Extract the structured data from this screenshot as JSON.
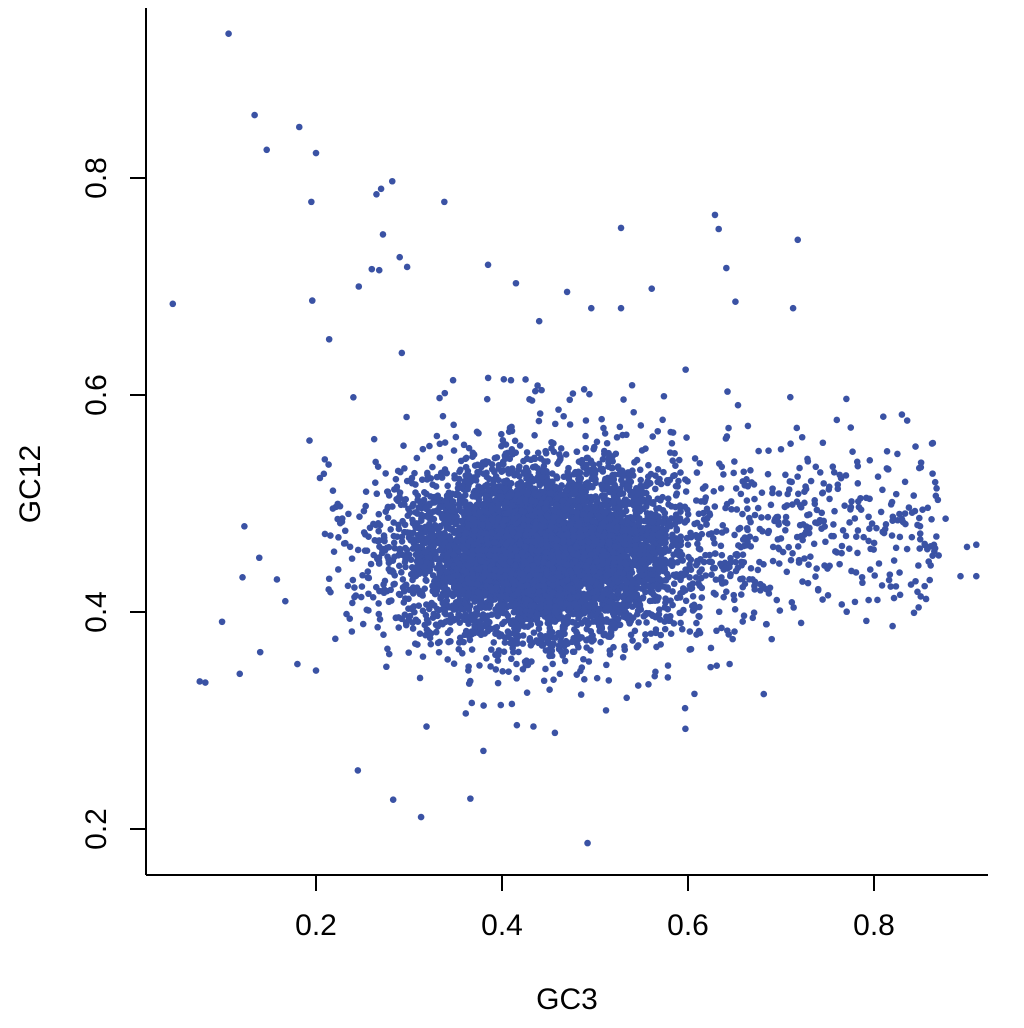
{
  "chart_data": {
    "type": "scatter",
    "title": "",
    "xlabel": "GC3",
    "ylabel": "GC12",
    "xlim": [
      0.02,
      0.93
    ],
    "ylim": [
      0.18,
      0.96
    ],
    "x_ticks": [
      0.2,
      0.4,
      0.6,
      0.8
    ],
    "x_tick_labels": [
      "0.2",
      "0.4",
      "0.6",
      "0.8"
    ],
    "y_ticks": [
      0.2,
      0.4,
      0.6,
      0.8
    ],
    "y_tick_labels": [
      "0.2",
      "0.4",
      "0.6",
      "0.8"
    ],
    "grid": false,
    "legend": "none",
    "point_color": "#3A52A4",
    "series": [
      {
        "points": [
          [
            0.106,
            0.933
          ],
          [
            0.134,
            0.858
          ],
          [
            0.147,
            0.826
          ],
          [
            0.182,
            0.847
          ],
          [
            0.2,
            0.823
          ],
          [
            0.195,
            0.778
          ],
          [
            0.265,
            0.785
          ],
          [
            0.27,
            0.79
          ],
          [
            0.282,
            0.797
          ],
          [
            0.338,
            0.778
          ],
          [
            0.046,
            0.684
          ],
          [
            0.196,
            0.687
          ],
          [
            0.246,
            0.7
          ],
          [
            0.26,
            0.716
          ],
          [
            0.268,
            0.715
          ],
          [
            0.272,
            0.748
          ],
          [
            0.29,
            0.727
          ],
          [
            0.298,
            0.718
          ],
          [
            0.385,
            0.72
          ],
          [
            0.415,
            0.703
          ],
          [
            0.44,
            0.668
          ],
          [
            0.47,
            0.695
          ],
          [
            0.496,
            0.68
          ],
          [
            0.528,
            0.68
          ],
          [
            0.528,
            0.754
          ],
          [
            0.561,
            0.698
          ],
          [
            0.629,
            0.766
          ],
          [
            0.633,
            0.753
          ],
          [
            0.651,
            0.686
          ],
          [
            0.713,
            0.68
          ],
          [
            0.718,
            0.743
          ],
          [
            0.193,
            0.558
          ],
          [
            0.123,
            0.479
          ],
          [
            0.139,
            0.45
          ],
          [
            0.099,
            0.391
          ],
          [
            0.121,
            0.432
          ],
          [
            0.075,
            0.336
          ],
          [
            0.081,
            0.335
          ],
          [
            0.118,
            0.343
          ],
          [
            0.14,
            0.363
          ],
          [
            0.158,
            0.43
          ],
          [
            0.167,
            0.41
          ],
          [
            0.18,
            0.352
          ],
          [
            0.2,
            0.346
          ],
          [
            0.245,
            0.254
          ],
          [
            0.283,
            0.227
          ],
          [
            0.313,
            0.211
          ],
          [
            0.366,
            0.228
          ],
          [
            0.492,
            0.187
          ],
          [
            0.38,
            0.272
          ],
          [
            0.69,
            0.375
          ],
          [
            0.82,
            0.387
          ],
          [
            0.856,
            0.412
          ],
          [
            0.893,
            0.433
          ],
          [
            0.91,
            0.462
          ],
          [
            0.9,
            0.46
          ],
          [
            0.91,
            0.433
          ],
          [
            0.877,
            0.486
          ],
          [
            0.83,
            0.582
          ],
          [
            0.81,
            0.58
          ],
          [
            0.75,
            0.44
          ],
          [
            0.745,
            0.51
          ],
          [
            0.7,
            0.55
          ],
          [
            0.65,
            0.382
          ],
          [
            0.648,
            0.375
          ],
          [
            0.71,
            0.598
          ],
          [
            0.76,
            0.577
          ],
          [
            0.775,
            0.57
          ],
          [
            0.745,
            0.556
          ],
          [
            0.74,
            0.42
          ]
        ]
      }
    ]
  }
}
